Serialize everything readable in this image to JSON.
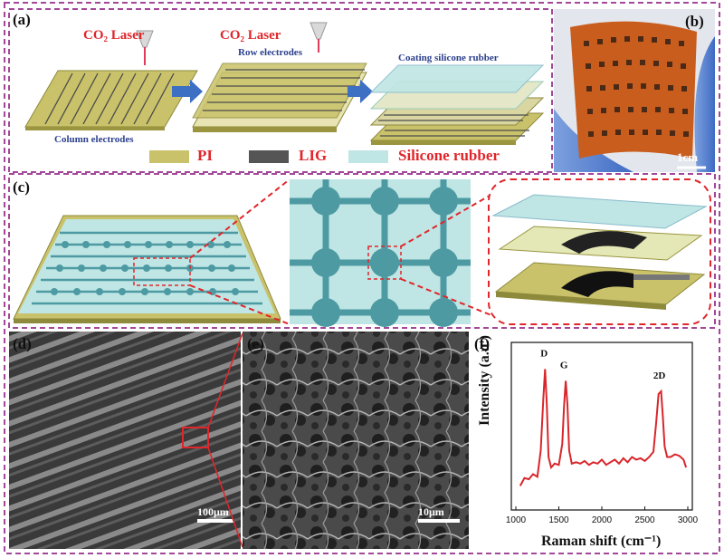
{
  "panels": {
    "a": "(a)",
    "b": "(b)",
    "c": "(c)",
    "d": "(d)",
    "e": "(e)",
    "f": "(f)"
  },
  "panel_a": {
    "laser1": "CO₂ Laser",
    "laser2": "CO₂ Laser",
    "row_electrodes": "Row electrodes",
    "column_electrodes": "Column electrodes",
    "coating": "Coating silicone rubber",
    "legend": [
      {
        "label": "PI",
        "color": "#c9c26a"
      },
      {
        "label": "LIG",
        "color": "#555555"
      },
      {
        "label": "Silicone rubber",
        "color": "#bfe6e4"
      }
    ]
  },
  "panel_b": {
    "scale": "1cm"
  },
  "panel_d": {
    "scale": "100μm"
  },
  "panel_e": {
    "scale": "10μm"
  },
  "colors": {
    "frame": "#a2479a",
    "zoom": "#e0262b",
    "pi": "#c9c26a",
    "lig": "#555555",
    "silicone": "#bfe6e4",
    "raman": "#d9262b"
  },
  "chart_data": {
    "type": "line",
    "xlabel": "Raman shift (cm⁻¹)",
    "ylabel": "Intensity (a.u.)",
    "xlim": [
      1000,
      3000
    ],
    "xticks": [
      "1000",
      "1500",
      "2000",
      "2500",
      "3000"
    ],
    "annotations": [
      {
        "text": "D",
        "x": 1350
      },
      {
        "text": "G",
        "x": 1580
      },
      {
        "text": "2D",
        "x": 2690
      }
    ],
    "series": [
      {
        "x": [
          1050,
          1100,
          1150,
          1200,
          1250,
          1290,
          1320,
          1340,
          1360,
          1380,
          1410,
          1450,
          1500,
          1540,
          1560,
          1580,
          1600,
          1620,
          1650,
          1700,
          1750,
          1800,
          1850,
          1900,
          1950,
          2000,
          2050,
          2100,
          2150,
          2200,
          2250,
          2300,
          2350,
          2400,
          2450,
          2500,
          2550,
          2600,
          2630,
          2660,
          2690,
          2710,
          2730,
          2760,
          2800,
          2850,
          2900,
          2950,
          2980
        ],
        "values": [
          0.08,
          0.14,
          0.13,
          0.17,
          0.15,
          0.35,
          0.75,
          0.97,
          0.7,
          0.3,
          0.22,
          0.25,
          0.24,
          0.4,
          0.68,
          0.88,
          0.7,
          0.35,
          0.25,
          0.26,
          0.25,
          0.27,
          0.24,
          0.26,
          0.25,
          0.28,
          0.24,
          0.26,
          0.28,
          0.25,
          0.29,
          0.26,
          0.3,
          0.28,
          0.29,
          0.27,
          0.3,
          0.34,
          0.55,
          0.78,
          0.8,
          0.6,
          0.38,
          0.3,
          0.3,
          0.32,
          0.31,
          0.28,
          0.22
        ]
      }
    ]
  }
}
